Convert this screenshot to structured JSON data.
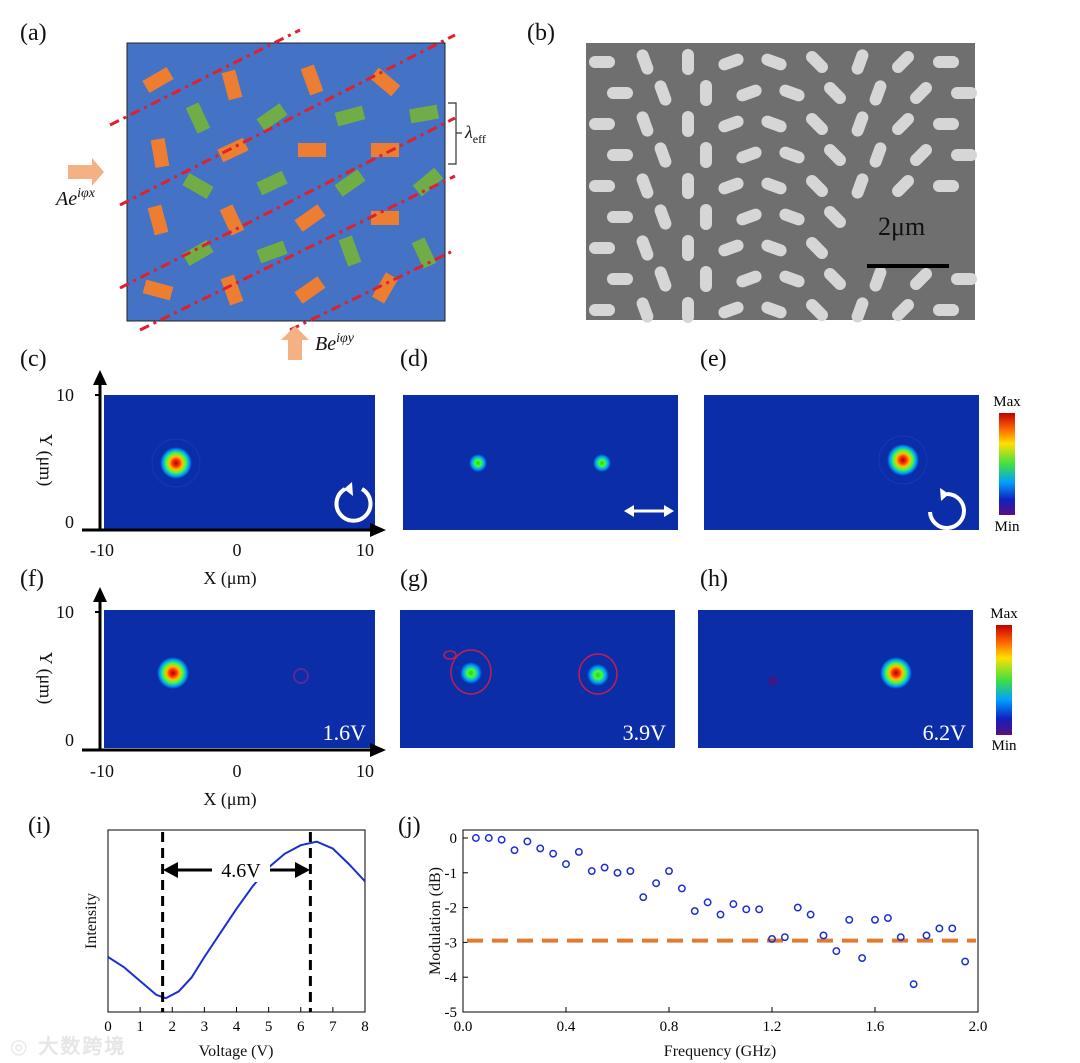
{
  "labels": {
    "a": "(a)",
    "b": "(b)",
    "c": "(c)",
    "d": "(d)",
    "e": "(e)",
    "f": "(f)",
    "g": "(g)",
    "h": "(h)",
    "i": "(i)",
    "j": "(j)"
  },
  "panel_a": {
    "input_x": "Ae",
    "input_x_sup": "iφx",
    "input_y": "Be",
    "input_y_sup": "iφy",
    "lambda": "λ",
    "lambda_sub": "eff",
    "colors": {
      "background": "#4472c4",
      "orange": "#ed7d31",
      "green": "#70ad47",
      "dashline": "#e0202a"
    }
  },
  "panel_b": {
    "scale_bar": "2μm"
  },
  "maps": {
    "y_label": "Y (μm)",
    "x_label": "X (μm)",
    "y_ticks": [
      "10",
      "0"
    ],
    "x_ticks": [
      "-10",
      "0",
      "10"
    ],
    "colorbar_max": "Max",
    "colorbar_min": "Min",
    "voltages": [
      "1.6V",
      "3.9V",
      "6.2V"
    ],
    "background": "#0b2da8"
  },
  "chart_data": [
    {
      "id": "panel-i",
      "type": "line",
      "title": "",
      "xlabel": "Voltage (V)",
      "ylabel": "Intensity",
      "xlim": [
        0,
        8
      ],
      "x_ticks": [
        "0",
        "1",
        "2",
        "3",
        "4",
        "5",
        "6",
        "7",
        "8"
      ],
      "annotation": "4.6V",
      "markers_x": [
        1.7,
        6.3
      ],
      "series": [
        {
          "name": "intensity",
          "x": [
            0,
            0.5,
            1.0,
            1.5,
            1.8,
            2.2,
            2.6,
            3.0,
            3.5,
            4.0,
            4.5,
            5.0,
            5.5,
            6.0,
            6.5,
            7.0,
            7.5,
            8.0
          ],
          "y": [
            0.32,
            0.26,
            0.18,
            0.1,
            0.08,
            0.12,
            0.2,
            0.32,
            0.46,
            0.6,
            0.73,
            0.84,
            0.92,
            0.97,
            0.99,
            0.95,
            0.86,
            0.76
          ]
        }
      ]
    },
    {
      "id": "panel-j",
      "type": "scatter",
      "title": "",
      "xlabel": "Frequency (GHz)",
      "ylabel": "Modulation (dB)",
      "xlim": [
        0.0,
        2.0
      ],
      "ylim": [
        -5,
        0
      ],
      "x_ticks": [
        "0.0",
        "0.4",
        "0.8",
        "1.2",
        "1.6",
        "2.0"
      ],
      "y_ticks": [
        "0",
        "-1",
        "-2",
        "-3",
        "-4",
        "-5"
      ],
      "threshold": -2.95,
      "series": [
        {
          "name": "modulation",
          "x": [
            0.05,
            0.1,
            0.15,
            0.2,
            0.25,
            0.3,
            0.35,
            0.4,
            0.45,
            0.5,
            0.55,
            0.6,
            0.65,
            0.7,
            0.75,
            0.8,
            0.85,
            0.9,
            0.95,
            1.0,
            1.05,
            1.1,
            1.15,
            1.2,
            1.25,
            1.3,
            1.35,
            1.4,
            1.45,
            1.5,
            1.55,
            1.6,
            1.65,
            1.7,
            1.75,
            1.8,
            1.85,
            1.9,
            1.95
          ],
          "y": [
            0.0,
            0.0,
            -0.05,
            -0.35,
            -0.1,
            -0.3,
            -0.45,
            -0.75,
            -0.4,
            -0.95,
            -0.85,
            -1.0,
            -0.95,
            -1.7,
            -1.3,
            -0.95,
            -1.45,
            -2.1,
            -1.85,
            -2.2,
            -1.9,
            -2.05,
            -2.05,
            -2.9,
            -2.85,
            -2.0,
            -2.2,
            -2.8,
            -3.25,
            -2.35,
            -3.45,
            -2.35,
            -2.3,
            -2.85,
            -4.2,
            -2.8,
            -2.6,
            -2.6,
            -3.55
          ]
        }
      ]
    }
  ]
}
